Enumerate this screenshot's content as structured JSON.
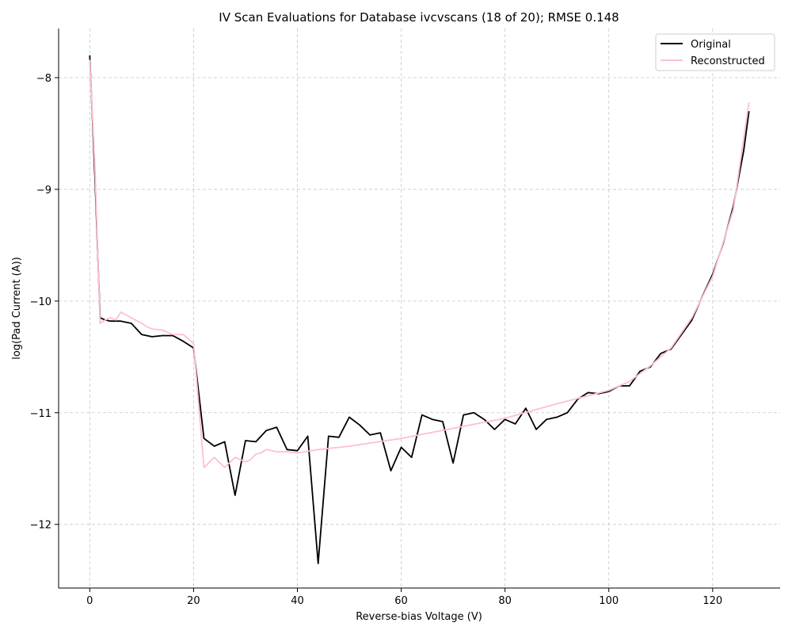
{
  "chart_data": {
    "type": "line",
    "title": "IV Scan Evaluations for Database ivcvscans (18 of 20); RMSE 0.148",
    "xlabel": "Reverse-bias Voltage (V)",
    "ylabel": "log(Pad Current (A))",
    "xlim": [
      -6,
      133
    ],
    "ylim": [
      -12.57,
      -7.56
    ],
    "xticks": [
      0,
      20,
      40,
      60,
      80,
      100,
      120
    ],
    "yticks": [
      -12,
      -11,
      -10,
      -9,
      -8
    ],
    "ytick_labels": [
      "−12",
      "−11",
      "−10",
      "−9",
      "−8"
    ],
    "grid": true,
    "legend": "top-right",
    "series": [
      {
        "name": "Original",
        "color": "#000000",
        "x": [
          0,
          1,
          2,
          3,
          4,
          6,
          8,
          10,
          12,
          14,
          16,
          18,
          20,
          22,
          24,
          26,
          28,
          30,
          32,
          34,
          36,
          38,
          40,
          42,
          44,
          46,
          48,
          50,
          52,
          54,
          56,
          58,
          60,
          62,
          64,
          66,
          68,
          70,
          72,
          74,
          76,
          78,
          80,
          82,
          84,
          86,
          88,
          90,
          92,
          94,
          96,
          98,
          100,
          102,
          104,
          106,
          108,
          110,
          112,
          114,
          116,
          118,
          120,
          122,
          124,
          126,
          127
        ],
        "y": [
          -7.8,
          -8.9,
          -10.15,
          -10.17,
          -10.18,
          -10.18,
          -10.2,
          -10.3,
          -10.32,
          -10.31,
          -10.31,
          -10.36,
          -10.42,
          -11.23,
          -11.3,
          -11.26,
          -11.74,
          -11.25,
          -11.26,
          -11.16,
          -11.13,
          -11.33,
          -11.34,
          -11.21,
          -12.35,
          -11.21,
          -11.22,
          -11.04,
          -11.11,
          -11.2,
          -11.18,
          -11.52,
          -11.31,
          -11.4,
          -11.02,
          -11.06,
          -11.08,
          -11.45,
          -11.02,
          -11.0,
          -11.06,
          -11.15,
          -11.06,
          -11.1,
          -10.96,
          -11.15,
          -11.06,
          -11.04,
          -11.0,
          -10.88,
          -10.82,
          -10.83,
          -10.81,
          -10.76,
          -10.76,
          -10.63,
          -10.59,
          -10.47,
          -10.43,
          -10.3,
          -10.17,
          -9.96,
          -9.76,
          -9.49,
          -9.15,
          -8.65,
          -8.3
        ]
      },
      {
        "name": "Reconstructed",
        "color": "#ffc0cb",
        "x": [
          0,
          1,
          2,
          3,
          4,
          5,
          6,
          8,
          10,
          11,
          12,
          14,
          16,
          18,
          20,
          22,
          24,
          26,
          28,
          30,
          31,
          32,
          33,
          34,
          36,
          38,
          40,
          44,
          50,
          60,
          70,
          80,
          90,
          100,
          104,
          108,
          112,
          116,
          120,
          124,
          127
        ],
        "y": [
          -7.84,
          -8.8,
          -10.2,
          -10.17,
          -10.15,
          -10.17,
          -10.1,
          -10.15,
          -10.2,
          -10.23,
          -10.25,
          -10.26,
          -10.3,
          -10.3,
          -10.38,
          -11.49,
          -11.4,
          -11.49,
          -11.4,
          -11.44,
          -11.42,
          -11.37,
          -11.36,
          -11.33,
          -11.35,
          -11.35,
          -11.36,
          -11.33,
          -11.3,
          -11.23,
          -11.14,
          -11.05,
          -10.92,
          -10.8,
          -10.72,
          -10.58,
          -10.42,
          -10.15,
          -9.78,
          -9.18,
          -8.22
        ]
      }
    ]
  }
}
